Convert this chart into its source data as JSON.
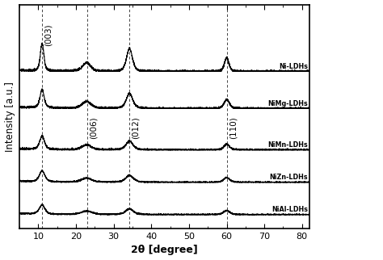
{
  "xlabel": "2θ [degree]",
  "ylabel": "Intensity [a.u.]",
  "xlim": [
    5,
    82
  ],
  "xticks": [
    10,
    20,
    30,
    40,
    50,
    60,
    70,
    80
  ],
  "vlines": [
    11.0,
    23.0,
    34.2,
    60.0
  ],
  "vline_labels": [
    "(003)",
    "(006)",
    "(012)",
    "(110)"
  ],
  "sample_labels_top": [
    "NiAl-LDHs",
    "NiZn-LDHs"
  ],
  "sample_labels_bottom": [
    "NiMn-LDHs",
    "NiMg-LDHs",
    "Ni-LDHs"
  ],
  "offsets": [
    0.76,
    0.6,
    0.42,
    0.28,
    0.14
  ],
  "background_color": "#ffffff",
  "line_color": "#000000"
}
